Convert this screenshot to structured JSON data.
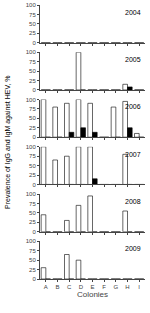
{
  "chart_data": [
    {
      "type": "bar",
      "annotation": "2004",
      "ylabel": "Prevalence of IgG and IgM against HEV, %",
      "categories": [
        "A",
        "B",
        "C",
        "D",
        "E",
        "F",
        "G",
        "H",
        "I"
      ],
      "series": [
        {
          "color": "white",
          "values": [
            0,
            0,
            0,
            0,
            0,
            0,
            0,
            0,
            0
          ]
        },
        {
          "color": "black",
          "values": [
            0,
            0,
            0,
            0,
            0,
            0,
            0,
            0,
            0
          ]
        }
      ],
      "ylim": [
        0,
        100
      ],
      "yticks": [
        0,
        25,
        50,
        75,
        100
      ],
      "grid": false,
      "tick_labels": "y"
    },
    {
      "type": "bar",
      "annotation": "2005",
      "categories": [
        "A",
        "B",
        "C",
        "D",
        "E",
        "F",
        "G",
        "H",
        "I"
      ],
      "series": [
        {
          "color": "white",
          "values": [
            0,
            0,
            0,
            100,
            0,
            0,
            0,
            15,
            0
          ]
        },
        {
          "color": "black",
          "values": [
            0,
            0,
            0,
            0,
            0,
            0,
            0,
            8,
            0
          ]
        }
      ],
      "ylim": [
        0,
        100
      ],
      "yticks": [
        0,
        25,
        50,
        75,
        100
      ],
      "grid": false,
      "tick_labels": "y"
    },
    {
      "type": "bar",
      "annotation": "2006",
      "categories": [
        "A",
        "B",
        "C",
        "D",
        "E",
        "F",
        "G",
        "H",
        "I"
      ],
      "series": [
        {
          "color": "white",
          "values": [
            100,
            80,
            90,
            100,
            90,
            0,
            80,
            95,
            10
          ]
        },
        {
          "color": "black",
          "values": [
            0,
            0,
            13,
            25,
            13,
            0,
            0,
            25,
            0
          ]
        }
      ],
      "ylim": [
        0,
        100
      ],
      "yticks": [
        0,
        25,
        50,
        75,
        100
      ],
      "grid": false,
      "tick_labels": "y"
    },
    {
      "type": "bar",
      "annotation": "2007",
      "categories": [
        "A",
        "B",
        "C",
        "D",
        "E",
        "F",
        "G",
        "H",
        "I"
      ],
      "series": [
        {
          "color": "white",
          "values": [
            100,
            65,
            75,
            100,
            100,
            0,
            0,
            80,
            0
          ]
        },
        {
          "color": "black",
          "values": [
            0,
            0,
            0,
            0,
            15,
            0,
            0,
            0,
            0
          ]
        }
      ],
      "ylim": [
        0,
        100
      ],
      "yticks": [
        0,
        25,
        50,
        75,
        100
      ],
      "grid": false,
      "tick_labels": "y"
    },
    {
      "type": "bar",
      "annotation": "2008",
      "categories": [
        "A",
        "B",
        "C",
        "D",
        "E",
        "F",
        "G",
        "H",
        "I"
      ],
      "series": [
        {
          "color": "white",
          "values": [
            45,
            0,
            30,
            70,
            95,
            0,
            0,
            55,
            0
          ]
        },
        {
          "color": "black",
          "values": [
            0,
            0,
            0,
            0,
            0,
            0,
            0,
            0,
            0
          ]
        }
      ],
      "ylim": [
        0,
        100
      ],
      "yticks": [
        0,
        25,
        50,
        75,
        100
      ],
      "grid": false,
      "tick_labels": "y"
    },
    {
      "type": "bar",
      "annotation": "2009",
      "xlabel": "Colonies",
      "categories": [
        "A",
        "B",
        "C",
        "D",
        "E",
        "F",
        "G",
        "H",
        "I"
      ],
      "series": [
        {
          "color": "white",
          "values": [
            30,
            0,
            65,
            50,
            0,
            0,
            0,
            0,
            0
          ]
        },
        {
          "color": "black",
          "values": [
            0,
            0,
            0,
            0,
            0,
            0,
            0,
            0,
            0
          ]
        }
      ],
      "ylim": [
        0,
        100
      ],
      "yticks": [
        0,
        25,
        50,
        75,
        100
      ],
      "grid": false
    }
  ]
}
